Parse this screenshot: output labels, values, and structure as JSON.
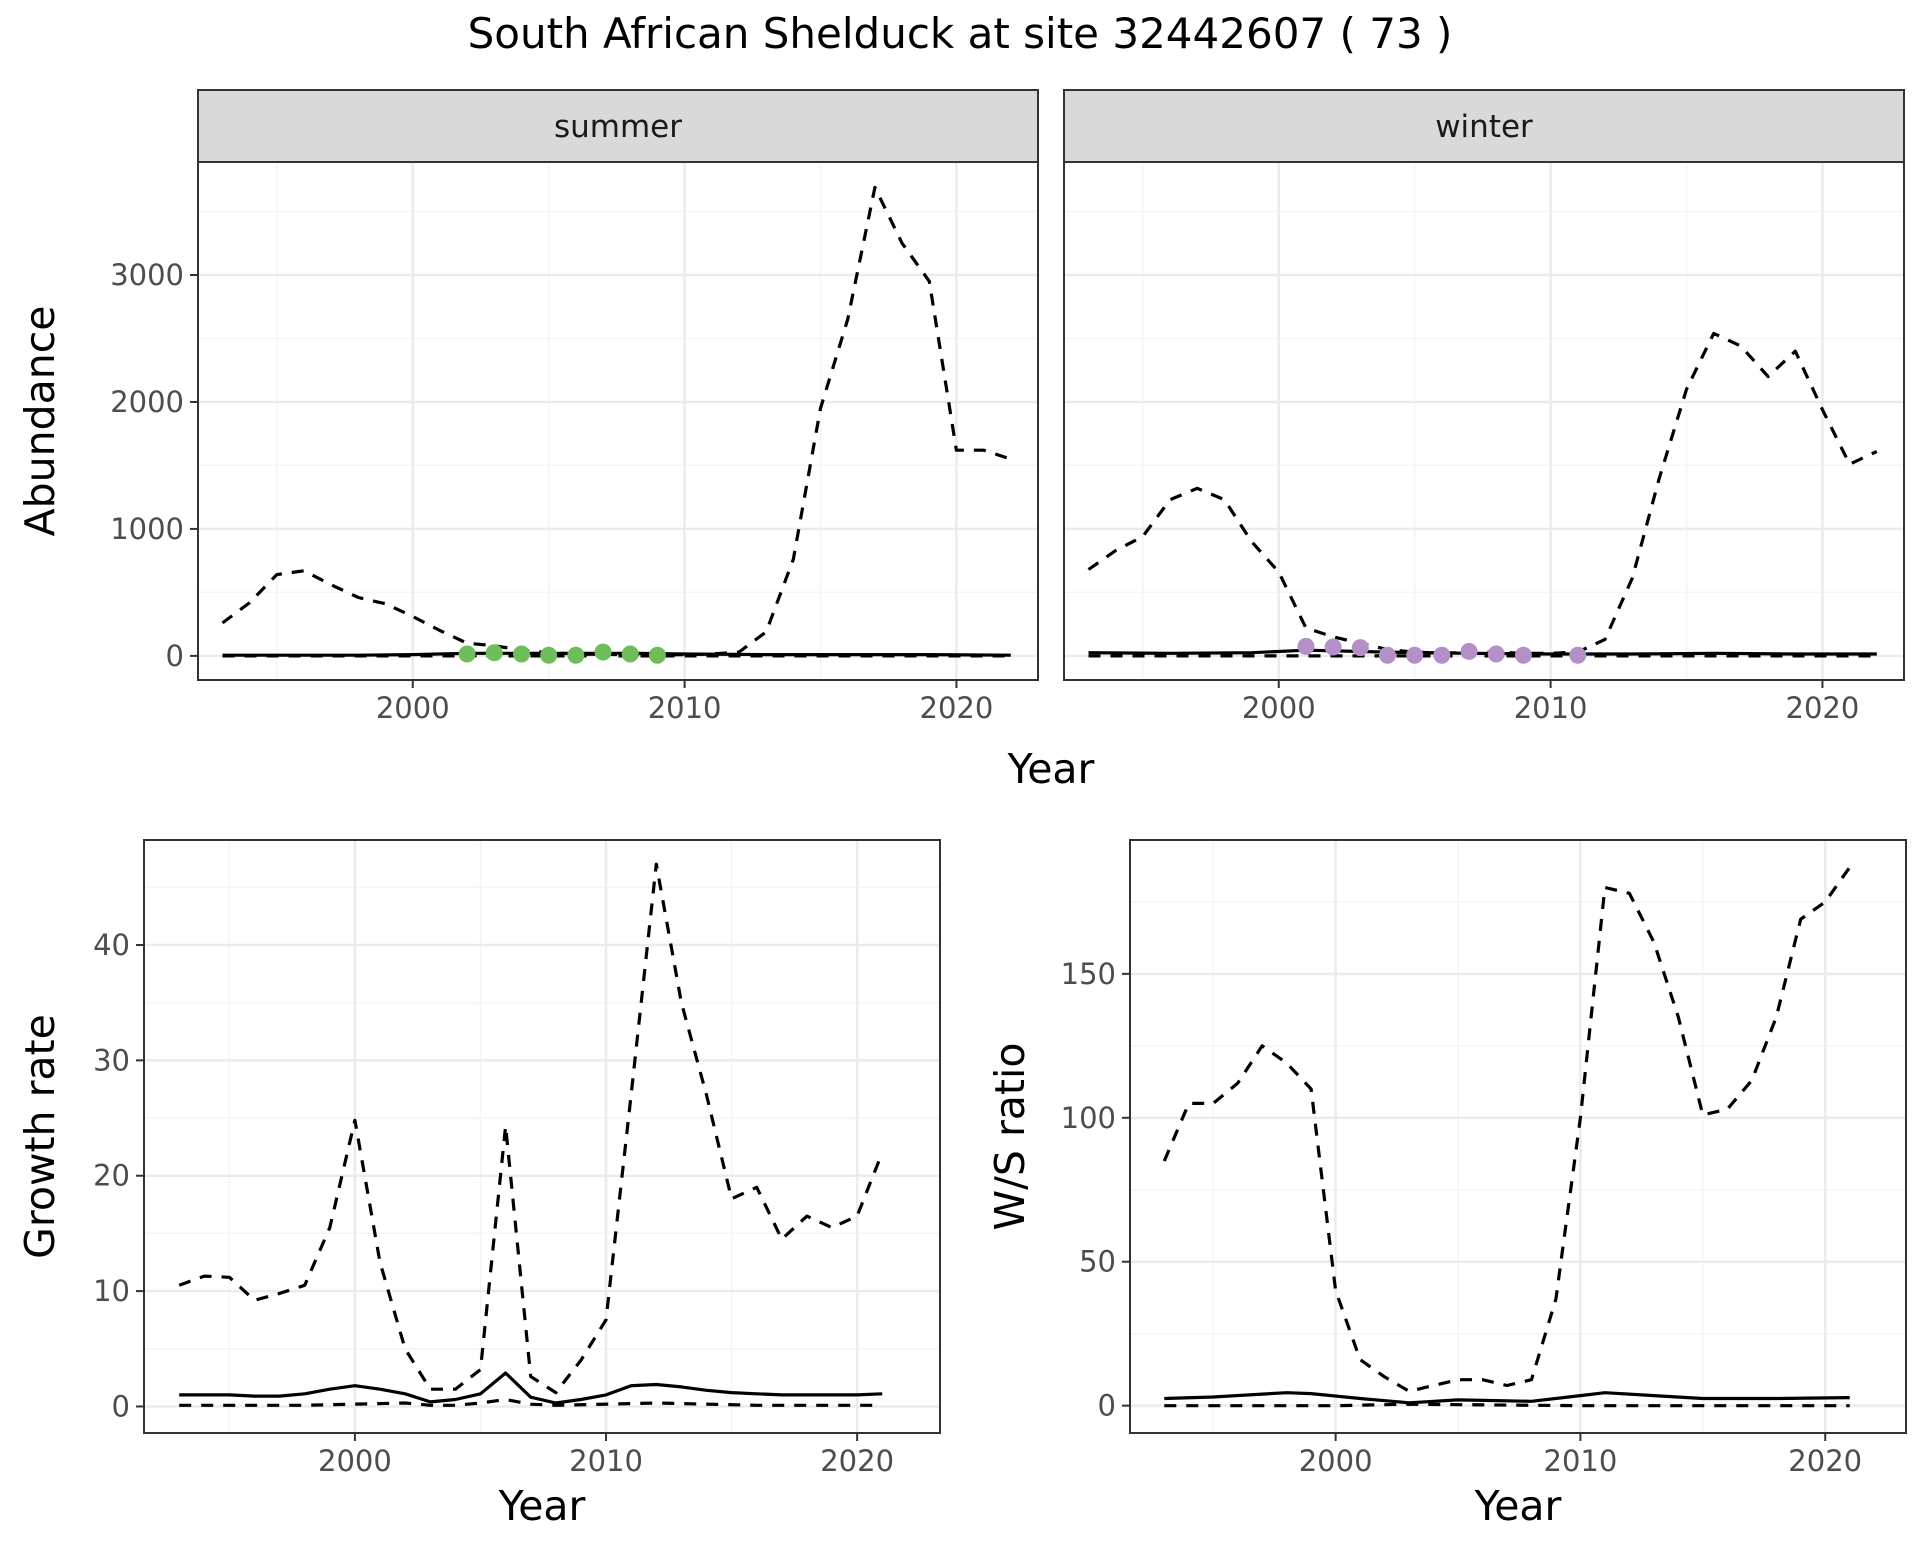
{
  "title": "South African Shelduck at site 32442607 ( 73 )",
  "colors": {
    "summer_points": "#6dbd5b",
    "winter_points": "#b48fc8",
    "strip_fill": "#d9d9d9",
    "line": "#000000",
    "grid_major": "#ebebeb",
    "grid_minor": "#f4f4f4",
    "panel_border": "#333333",
    "tick_text": "#4d4d4d"
  },
  "chart_data": [
    {
      "type": "line",
      "panel": "summer",
      "strip_label": "summer",
      "xlabel": "Year",
      "ylabel": "Abundance",
      "xlim": [
        1992.1,
        2023.0
      ],
      "ylim": [
        -190,
        3890
      ],
      "xticks": [
        2000,
        2010,
        2020
      ],
      "yticks": [
        0,
        1000,
        2000,
        3000
      ],
      "grid": true,
      "series": [
        {
          "style": "dashed",
          "x": [
            1993,
            1994,
            1995,
            1996,
            1997,
            1998,
            1999,
            2000,
            2001,
            2002,
            2003,
            2004,
            2005,
            2006,
            2007,
            2008,
            2009,
            2010,
            2011,
            2012,
            2013,
            2014,
            2015,
            2016,
            2017,
            2018,
            2019,
            2020,
            2021,
            2022
          ],
          "y": [
            260,
            420,
            640,
            670,
            560,
            460,
            410,
            310,
            200,
            100,
            80,
            45,
            25,
            15,
            12,
            10,
            8,
            10,
            15,
            30,
            190,
            760,
            1950,
            2650,
            3690,
            3250,
            2950,
            1620,
            1620,
            1550
          ]
        },
        {
          "style": "solid",
          "x": [
            1993,
            1995,
            1998,
            2000,
            2002,
            2005,
            2008,
            2010,
            2013,
            2016,
            2019,
            2022
          ],
          "y": [
            5,
            5,
            5,
            10,
            20,
            20,
            20,
            15,
            10,
            10,
            10,
            5
          ]
        },
        {
          "style": "dashed",
          "x": [
            1993,
            2000,
            2010,
            2022
          ],
          "y": [
            0,
            0,
            0,
            0
          ]
        },
        {
          "style": "points",
          "x": [
            2002,
            2003,
            2004,
            2005,
            2006,
            2007,
            2008,
            2009
          ],
          "y": [
            15,
            25,
            15,
            5,
            5,
            30,
            15,
            5
          ]
        }
      ]
    },
    {
      "type": "line",
      "panel": "winter",
      "strip_label": "winter",
      "xlabel": "Year",
      "ylabel": "Abundance",
      "xlim": [
        1992.1,
        2023.0
      ],
      "ylim": [
        -190,
        3890
      ],
      "xticks": [
        2000,
        2010,
        2020
      ],
      "yticks": [
        0,
        1000,
        2000,
        3000
      ],
      "grid": true,
      "series": [
        {
          "style": "dashed",
          "x": [
            1993,
            1994,
            1995,
            1996,
            1997,
            1998,
            1999,
            2000,
            2001,
            2002,
            2003,
            2004,
            2005,
            2006,
            2007,
            2008,
            2009,
            2010,
            2011,
            2012,
            2013,
            2014,
            2015,
            2016,
            2017,
            2018,
            2019,
            2020,
            2021,
            2022
          ],
          "y": [
            680,
            830,
            940,
            1230,
            1320,
            1230,
            900,
            660,
            220,
            150,
            100,
            50,
            30,
            20,
            30,
            30,
            20,
            20,
            30,
            130,
            610,
            1400,
            2100,
            2540,
            2440,
            2200,
            2400,
            1940,
            1510,
            1610
          ]
        },
        {
          "style": "solid",
          "x": [
            1993,
            1996,
            1999,
            2001,
            2004,
            2007,
            2010,
            2013,
            2016,
            2019,
            2022
          ],
          "y": [
            25,
            20,
            25,
            45,
            30,
            20,
            15,
            15,
            20,
            15,
            15
          ]
        },
        {
          "style": "dashed",
          "x": [
            1993,
            2000,
            2010,
            2022
          ],
          "y": [
            0,
            0,
            0,
            0
          ]
        },
        {
          "style": "points",
          "x": [
            2001,
            2002,
            2003,
            2004,
            2005,
            2006,
            2007,
            2008,
            2009,
            2011
          ],
          "y": [
            75,
            70,
            65,
            5,
            5,
            5,
            35,
            15,
            5,
            5
          ]
        }
      ]
    },
    {
      "type": "line",
      "panel": "growth",
      "xlabel": "Year",
      "ylabel": "Growth rate",
      "xlim": [
        1991.6,
        2023.3
      ],
      "ylim": [
        -2.3,
        49.1
      ],
      "xticks": [
        2000,
        2010,
        2020
      ],
      "yticks": [
        0,
        10,
        20,
        30,
        40
      ],
      "grid": true,
      "series": [
        {
          "style": "dashed",
          "x": [
            1993,
            1994,
            1995,
            1996,
            1997,
            1998,
            1999,
            2000,
            2001,
            2002,
            2003,
            2004,
            2005,
            2006,
            2007,
            2008,
            2009,
            2010,
            2011,
            2012,
            2013,
            2014,
            2015,
            2016,
            2017,
            2018,
            2019,
            2020,
            2021
          ],
          "y": [
            10.5,
            11.3,
            11.2,
            9.2,
            9.8,
            10.5,
            15.5,
            24.8,
            12.5,
            5.0,
            1.5,
            1.5,
            3.2,
            24.3,
            2.6,
            1.2,
            4.0,
            7.5,
            27.0,
            47.0,
            35.0,
            27.0,
            18.0,
            19.0,
            14.5,
            16.5,
            15.5,
            16.5,
            22.0
          ]
        },
        {
          "style": "solid",
          "x": [
            1993,
            1994,
            1995,
            1996,
            1997,
            1998,
            1999,
            2000,
            2001,
            2002,
            2003,
            2004,
            2005,
            2006,
            2007,
            2008,
            2009,
            2010,
            2011,
            2012,
            2013,
            2014,
            2015,
            2016,
            2017,
            2018,
            2019,
            2020,
            2021
          ],
          "y": [
            1.0,
            1.0,
            1.0,
            0.9,
            0.9,
            1.1,
            1.5,
            1.8,
            1.5,
            1.1,
            0.4,
            0.6,
            1.1,
            2.9,
            0.8,
            0.3,
            0.6,
            1.0,
            1.8,
            1.9,
            1.7,
            1.4,
            1.2,
            1.1,
            1.0,
            1.0,
            1.0,
            1.0,
            1.1
          ]
        },
        {
          "style": "dashed",
          "x": [
            1993,
            1998,
            2002,
            2003,
            2004,
            2005,
            2006,
            2007,
            2008,
            2012,
            2016,
            2021
          ],
          "y": [
            0.1,
            0.1,
            0.3,
            0.1,
            0.1,
            0.3,
            0.6,
            0.2,
            0.1,
            0.3,
            0.1,
            0.1
          ]
        }
      ]
    },
    {
      "type": "line",
      "panel": "ratio",
      "xlabel": "Year",
      "ylabel": "W/S ratio",
      "xlim": [
        1991.6,
        2023.3
      ],
      "ylim": [
        -9.5,
        196.5
      ],
      "xticks": [
        2000,
        2010,
        2020
      ],
      "yticks": [
        0,
        50,
        100,
        150
      ],
      "grid": true,
      "series": [
        {
          "style": "dashed",
          "x": [
            1993,
            1994,
            1995,
            1996,
            1997,
            1998,
            1999,
            2000,
            2001,
            2002,
            2003,
            2004,
            2005,
            2006,
            2007,
            2008,
            2009,
            2010,
            2011,
            2012,
            2013,
            2014,
            2015,
            2016,
            2017,
            2018,
            2019,
            2020,
            2021
          ],
          "y": [
            85,
            105,
            105,
            112,
            125,
            119,
            110,
            40,
            16,
            10,
            5,
            7,
            9,
            9,
            7,
            9,
            37,
            100,
            180,
            178,
            161,
            135,
            101,
            103,
            113,
            135,
            169,
            175,
            187
          ]
        },
        {
          "style": "solid",
          "x": [
            1993,
            1995,
            1997,
            1998,
            1999,
            2001,
            2003,
            2005,
            2008,
            2010,
            2011,
            2013,
            2015,
            2018,
            2021
          ],
          "y": [
            2.5,
            3.0,
            4.0,
            4.5,
            4.2,
            2.5,
            1.0,
            2.0,
            1.5,
            3.5,
            4.5,
            3.5,
            2.5,
            2.5,
            2.8
          ]
        },
        {
          "style": "dashed",
          "x": [
            1993,
            2000,
            2003,
            2010,
            2021
          ],
          "y": [
            0,
            0,
            0.5,
            0,
            0
          ]
        }
      ]
    }
  ]
}
